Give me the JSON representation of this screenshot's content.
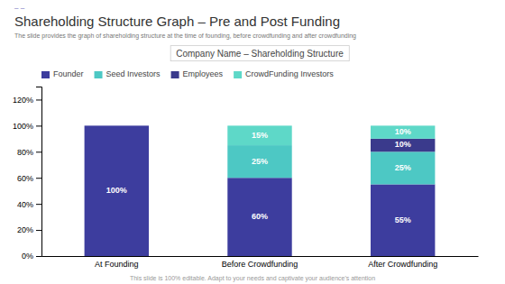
{
  "chart_data": {
    "type": "bar",
    "title": "Shareholding  Structure Graph – Pre and Post Funding",
    "subtitle": "The slide provides the graph of shareholding structure at the time of founding, before crowdfunding and after crowdfunding",
    "annotations": [
      "– –",
      "Company Name – Shareholding Structure",
      "This slide is 100% editable. Adapt to your needs and captivate your audience's attention"
    ],
    "categories": [
      "At Founding",
      "Before Crowdfunding",
      "After Crowdfunding"
    ],
    "series": [
      {
        "name": "Founder",
        "color": "#3d3d9e",
        "values": [
          100,
          60,
          55
        ],
        "value_labels": [
          "100%",
          "60%",
          "55%"
        ]
      },
      {
        "name": "Seed Investors",
        "color": "#4dc8c4",
        "values": [
          0,
          25,
          25
        ],
        "value_labels": [
          null,
          "25%",
          "25%"
        ]
      },
      {
        "name": "Employees",
        "color": "#3a3a8c",
        "values": [
          0,
          0,
          10
        ],
        "value_labels": [
          null,
          null,
          "10%"
        ]
      },
      {
        "name": "CrowdFunding Investors",
        "color": "#5ed8c8",
        "values": [
          0,
          15,
          10
        ],
        "value_labels": [
          null,
          "15%",
          "10%"
        ]
      }
    ],
    "ylim": [
      0,
      130
    ],
    "yticks": [
      {
        "value": 0,
        "label": "0%"
      },
      {
        "value": 20,
        "label": "20%"
      },
      {
        "value": 40,
        "label": "40%"
      },
      {
        "value": 60,
        "label": "60%"
      },
      {
        "value": 80,
        "label": "80%"
      },
      {
        "value": 100,
        "label": "100%"
      },
      {
        "value": 120,
        "label": "120%"
      }
    ],
    "stacked": true,
    "data_labels": true,
    "legend": "upper left",
    "grid": false
  }
}
